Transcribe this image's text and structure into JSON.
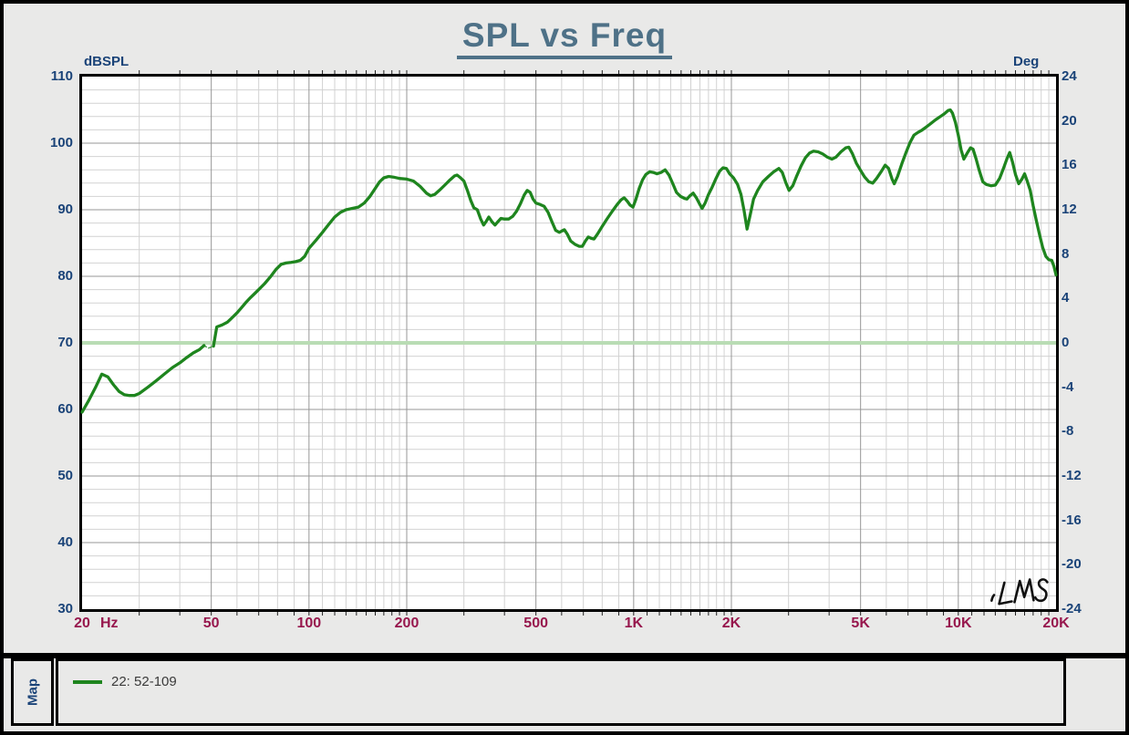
{
  "title": "SPL vs Freq",
  "colors": {
    "title": "#4e7187",
    "y_axis_text": "#1a4378",
    "x_axis_text": "#97174d",
    "curve": "#1e851e",
    "reference_line": "#b9dcb4",
    "grid_minor": "#d2d2d2",
    "grid_major": "#979797",
    "plot_background": "#ffffff",
    "page_background": "#e9e9e8"
  },
  "chart_data": {
    "type": "line",
    "title": "SPL vs Freq",
    "x_axis": {
      "unit": "Hz",
      "scale": "log",
      "min": 20,
      "max": 20000,
      "major_ticks": [
        [
          20,
          "20"
        ],
        [
          50,
          "50"
        ],
        [
          100,
          "100"
        ],
        [
          200,
          "200"
        ],
        [
          500,
          "500"
        ],
        [
          1000,
          "1K"
        ],
        [
          2000,
          "2K"
        ],
        [
          5000,
          "5K"
        ],
        [
          10000,
          "10K"
        ],
        [
          20000,
          "20K"
        ]
      ]
    },
    "y_left": {
      "label": "dBSPL",
      "min": 30,
      "max": 110,
      "major_step": 10,
      "minor_step": 2,
      "ticks": [
        110,
        100,
        90,
        80,
        70,
        60,
        50,
        40,
        30
      ]
    },
    "y_right": {
      "label": "Deg",
      "min": -24,
      "max": 24,
      "major_step": 4,
      "ticks": [
        24,
        20,
        16,
        12,
        8,
        4,
        0,
        -4,
        -8,
        -12,
        -16,
        -20,
        -24
      ]
    },
    "reference_line": {
      "dbspl": 70,
      "deg": 0
    },
    "series": [
      {
        "name": "22: 52-109",
        "color": "#1e851e",
        "splice_gap": {
          "from": 47.5,
          "to": 50.8
        },
        "points": [
          [
            20,
            59.6
          ],
          [
            21,
            61.4
          ],
          [
            22,
            63.3
          ],
          [
            23,
            65.3
          ],
          [
            24,
            64.9
          ],
          [
            25,
            63.7
          ],
          [
            26,
            62.7
          ],
          [
            27,
            62.2
          ],
          [
            28,
            62.1
          ],
          [
            29,
            62.1
          ],
          [
            30,
            62.4
          ],
          [
            32,
            63.4
          ],
          [
            34,
            64.4
          ],
          [
            36,
            65.4
          ],
          [
            38,
            66.3
          ],
          [
            40,
            67.0
          ],
          [
            42,
            67.8
          ],
          [
            44,
            68.5
          ],
          [
            46,
            69.0
          ],
          [
            47.5,
            69.6
          ],
          [
            49,
            69.2
          ],
          [
            50.8,
            69.5
          ],
          [
            51.5,
            71.2
          ],
          [
            52,
            72.4
          ],
          [
            54,
            72.7
          ],
          [
            56,
            73.1
          ],
          [
            58,
            73.8
          ],
          [
            60,
            74.5
          ],
          [
            62,
            75.3
          ],
          [
            64,
            76.1
          ],
          [
            66,
            76.8
          ],
          [
            68,
            77.4
          ],
          [
            70,
            78.0
          ],
          [
            73,
            78.9
          ],
          [
            76,
            79.9
          ],
          [
            79,
            81.0
          ],
          [
            82,
            81.8
          ],
          [
            85,
            82.0
          ],
          [
            88,
            82.1
          ],
          [
            91,
            82.2
          ],
          [
            94,
            82.4
          ],
          [
            97,
            83.0
          ],
          [
            100,
            84.2
          ],
          [
            105,
            85.4
          ],
          [
            110,
            86.6
          ],
          [
            115,
            87.8
          ],
          [
            120,
            88.9
          ],
          [
            125,
            89.6
          ],
          [
            130,
            90.0
          ],
          [
            136,
            90.2
          ],
          [
            142,
            90.4
          ],
          [
            148,
            91.0
          ],
          [
            154,
            92.0
          ],
          [
            160,
            93.2
          ],
          [
            165,
            94.2
          ],
          [
            170,
            94.8
          ],
          [
            176,
            95.0
          ],
          [
            182,
            94.9
          ],
          [
            190,
            94.7
          ],
          [
            200,
            94.6
          ],
          [
            210,
            94.3
          ],
          [
            220,
            93.5
          ],
          [
            230,
            92.5
          ],
          [
            237,
            92.1
          ],
          [
            244,
            92.3
          ],
          [
            252,
            92.9
          ],
          [
            262,
            93.7
          ],
          [
            272,
            94.5
          ],
          [
            281,
            95.1
          ],
          [
            286,
            95.2
          ],
          [
            293,
            94.8
          ],
          [
            300,
            94.3
          ],
          [
            308,
            92.8
          ],
          [
            315,
            91.4
          ],
          [
            322,
            90.3
          ],
          [
            330,
            90.0
          ],
          [
            338,
            88.6
          ],
          [
            345,
            87.7
          ],
          [
            352,
            88.3
          ],
          [
            358,
            88.9
          ],
          [
            366,
            88.2
          ],
          [
            374,
            87.7
          ],
          [
            382,
            88.2
          ],
          [
            390,
            88.7
          ],
          [
            400,
            88.6
          ],
          [
            412,
            88.6
          ],
          [
            424,
            89.0
          ],
          [
            436,
            89.8
          ],
          [
            448,
            90.9
          ],
          [
            460,
            92.2
          ],
          [
            470,
            92.9
          ],
          [
            480,
            92.6
          ],
          [
            490,
            91.6
          ],
          [
            500,
            91.0
          ],
          [
            515,
            90.8
          ],
          [
            530,
            90.5
          ],
          [
            545,
            89.6
          ],
          [
            560,
            88.2
          ],
          [
            575,
            86.9
          ],
          [
            590,
            86.6
          ],
          [
            600,
            86.8
          ],
          [
            612,
            87.0
          ],
          [
            625,
            86.3
          ],
          [
            640,
            85.3
          ],
          [
            660,
            84.8
          ],
          [
            680,
            84.5
          ],
          [
            695,
            84.5
          ],
          [
            710,
            85.3
          ],
          [
            725,
            85.9
          ],
          [
            740,
            85.7
          ],
          [
            755,
            85.6
          ],
          [
            775,
            86.4
          ],
          [
            800,
            87.5
          ],
          [
            830,
            88.7
          ],
          [
            860,
            89.8
          ],
          [
            890,
            90.8
          ],
          [
            915,
            91.5
          ],
          [
            935,
            91.8
          ],
          [
            955,
            91.3
          ],
          [
            975,
            90.7
          ],
          [
            995,
            90.4
          ],
          [
            1015,
            91.5
          ],
          [
            1040,
            93.2
          ],
          [
            1065,
            94.5
          ],
          [
            1090,
            95.3
          ],
          [
            1120,
            95.7
          ],
          [
            1150,
            95.6
          ],
          [
            1180,
            95.4
          ],
          [
            1215,
            95.6
          ],
          [
            1250,
            96.0
          ],
          [
            1285,
            95.2
          ],
          [
            1320,
            93.9
          ],
          [
            1355,
            92.6
          ],
          [
            1395,
            92.0
          ],
          [
            1435,
            91.7
          ],
          [
            1460,
            91.6
          ],
          [
            1490,
            92.1
          ],
          [
            1525,
            92.5
          ],
          [
            1560,
            91.8
          ],
          [
            1595,
            90.9
          ],
          [
            1625,
            90.2
          ],
          [
            1660,
            91.0
          ],
          [
            1700,
            92.3
          ],
          [
            1745,
            93.4
          ],
          [
            1790,
            94.6
          ],
          [
            1840,
            95.8
          ],
          [
            1885,
            96.3
          ],
          [
            1930,
            96.2
          ],
          [
            1975,
            95.4
          ],
          [
            2030,
            94.8
          ],
          [
            2090,
            93.8
          ],
          [
            2140,
            92.3
          ],
          [
            2190,
            89.8
          ],
          [
            2235,
            87.1
          ],
          [
            2290,
            89.4
          ],
          [
            2340,
            91.6
          ],
          [
            2410,
            92.9
          ],
          [
            2500,
            94.2
          ],
          [
            2600,
            95.0
          ],
          [
            2700,
            95.7
          ],
          [
            2800,
            96.2
          ],
          [
            2870,
            95.6
          ],
          [
            2940,
            94.1
          ],
          [
            3010,
            92.9
          ],
          [
            3090,
            93.6
          ],
          [
            3180,
            95.1
          ],
          [
            3280,
            96.6
          ],
          [
            3380,
            97.8
          ],
          [
            3480,
            98.5
          ],
          [
            3580,
            98.8
          ],
          [
            3700,
            98.7
          ],
          [
            3820,
            98.4
          ],
          [
            3950,
            97.9
          ],
          [
            4080,
            97.6
          ],
          [
            4200,
            97.9
          ],
          [
            4350,
            98.7
          ],
          [
            4500,
            99.3
          ],
          [
            4600,
            99.4
          ],
          [
            4720,
            98.4
          ],
          [
            4850,
            97.0
          ],
          [
            5000,
            95.9
          ],
          [
            5150,
            94.9
          ],
          [
            5300,
            94.2
          ],
          [
            5450,
            94.0
          ],
          [
            5600,
            94.7
          ],
          [
            5800,
            95.8
          ],
          [
            5950,
            96.7
          ],
          [
            6100,
            96.2
          ],
          [
            6250,
            94.6
          ],
          [
            6350,
            93.9
          ],
          [
            6500,
            95.0
          ],
          [
            6700,
            96.9
          ],
          [
            6900,
            98.6
          ],
          [
            7100,
            100.1
          ],
          [
            7300,
            101.2
          ],
          [
            7500,
            101.6
          ],
          [
            7700,
            101.9
          ],
          [
            7950,
            102.4
          ],
          [
            8200,
            102.9
          ],
          [
            8500,
            103.5
          ],
          [
            8800,
            104.0
          ],
          [
            9050,
            104.4
          ],
          [
            9300,
            104.9
          ],
          [
            9450,
            105.0
          ],
          [
            9600,
            104.5
          ],
          [
            9800,
            103.1
          ],
          [
            10000,
            101.2
          ],
          [
            10200,
            99.0
          ],
          [
            10400,
            97.6
          ],
          [
            10650,
            98.5
          ],
          [
            10900,
            99.3
          ],
          [
            11100,
            99.1
          ],
          [
            11350,
            97.6
          ],
          [
            11600,
            95.9
          ],
          [
            11900,
            94.2
          ],
          [
            12200,
            93.8
          ],
          [
            12600,
            93.6
          ],
          [
            13000,
            93.7
          ],
          [
            13400,
            94.7
          ],
          [
            13800,
            96.3
          ],
          [
            14100,
            97.6
          ],
          [
            14400,
            98.6
          ],
          [
            14700,
            97.1
          ],
          [
            15000,
            95.3
          ],
          [
            15350,
            93.9
          ],
          [
            15700,
            94.6
          ],
          [
            16000,
            95.4
          ],
          [
            16300,
            94.3
          ],
          [
            16650,
            92.9
          ],
          [
            17000,
            90.6
          ],
          [
            17400,
            88.3
          ],
          [
            17800,
            86.2
          ],
          [
            18200,
            84.3
          ],
          [
            18600,
            83.0
          ],
          [
            19000,
            82.5
          ],
          [
            19400,
            82.4
          ],
          [
            19700,
            81.5
          ],
          [
            20000,
            80.2
          ]
        ]
      }
    ]
  },
  "legend_panel": {
    "map_label": "Map",
    "entries": [
      {
        "label": "22: 52-109",
        "color": "#1e851e"
      }
    ]
  },
  "logo": "LMS"
}
